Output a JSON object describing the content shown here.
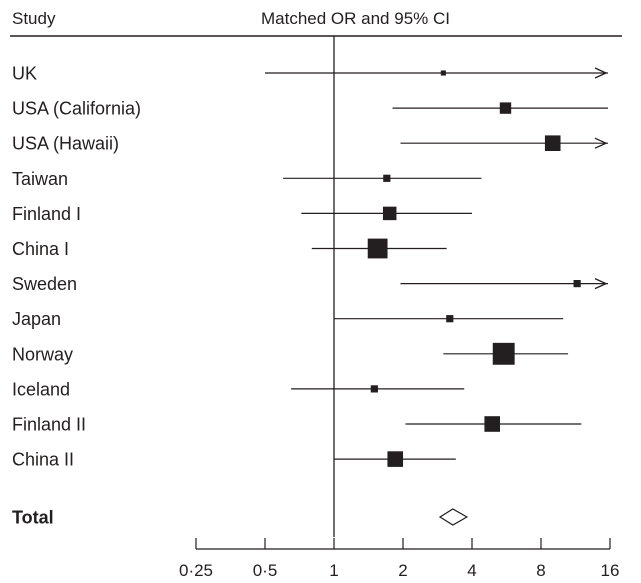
{
  "chart_data": {
    "type": "forest",
    "header_left": "Study",
    "header_right": "Matched OR and 95% CI",
    "x_scale": "log2",
    "xlim": [
      0.25,
      16
    ],
    "reference_line": 1,
    "x_ticks": [
      {
        "value": 0.25,
        "label": "0·25"
      },
      {
        "value": 0.5,
        "label": "0·5"
      },
      {
        "value": 1,
        "label": "1"
      },
      {
        "value": 2,
        "label": "2"
      },
      {
        "value": 4,
        "label": "4"
      },
      {
        "value": 8,
        "label": "8"
      },
      {
        "value": 16,
        "label": "16"
      }
    ],
    "studies": [
      {
        "label": "UK",
        "or": 3.0,
        "ci_low": 0.5,
        "ci_high": 16,
        "arrow": true,
        "weight": 1
      },
      {
        "label": "USA (California)",
        "or": 5.6,
        "ci_low": 1.8,
        "ci_high": 16,
        "arrow": false,
        "weight": 4
      },
      {
        "label": "USA (Hawaii)",
        "or": 9.0,
        "ci_low": 1.95,
        "ci_high": 16,
        "arrow": true,
        "weight": 6
      },
      {
        "label": "Taiwan",
        "or": 1.7,
        "ci_low": 0.6,
        "ci_high": 4.4,
        "arrow": false,
        "weight": 2
      },
      {
        "label": "Finland I",
        "or": 1.75,
        "ci_low": 0.72,
        "ci_high": 4.0,
        "arrow": false,
        "weight": 5
      },
      {
        "label": "China I",
        "or": 1.55,
        "ci_low": 0.8,
        "ci_high": 3.1,
        "arrow": false,
        "weight": 8
      },
      {
        "label": "Sweden",
        "or": 11.5,
        "ci_low": 1.95,
        "ci_high": 16,
        "arrow": true,
        "weight": 2
      },
      {
        "label": "Japan",
        "or": 3.2,
        "ci_low": 1.0,
        "ci_high": 10.0,
        "arrow": false,
        "weight": 2
      },
      {
        "label": "Norway",
        "or": 5.5,
        "ci_low": 3.0,
        "ci_high": 10.5,
        "arrow": false,
        "weight": 9
      },
      {
        "label": "Iceland",
        "or": 1.5,
        "ci_low": 0.65,
        "ci_high": 3.7,
        "arrow": false,
        "weight": 2
      },
      {
        "label": "Finland II",
        "or": 4.9,
        "ci_low": 2.05,
        "ci_high": 12.0,
        "arrow": false,
        "weight": 6
      },
      {
        "label": "China II",
        "or": 1.85,
        "ci_low": 1.0,
        "ci_high": 3.4,
        "arrow": false,
        "weight": 6
      }
    ],
    "total": {
      "label": "Total",
      "or": 3.3,
      "ci_low": 2.9,
      "ci_high": 3.8
    }
  }
}
